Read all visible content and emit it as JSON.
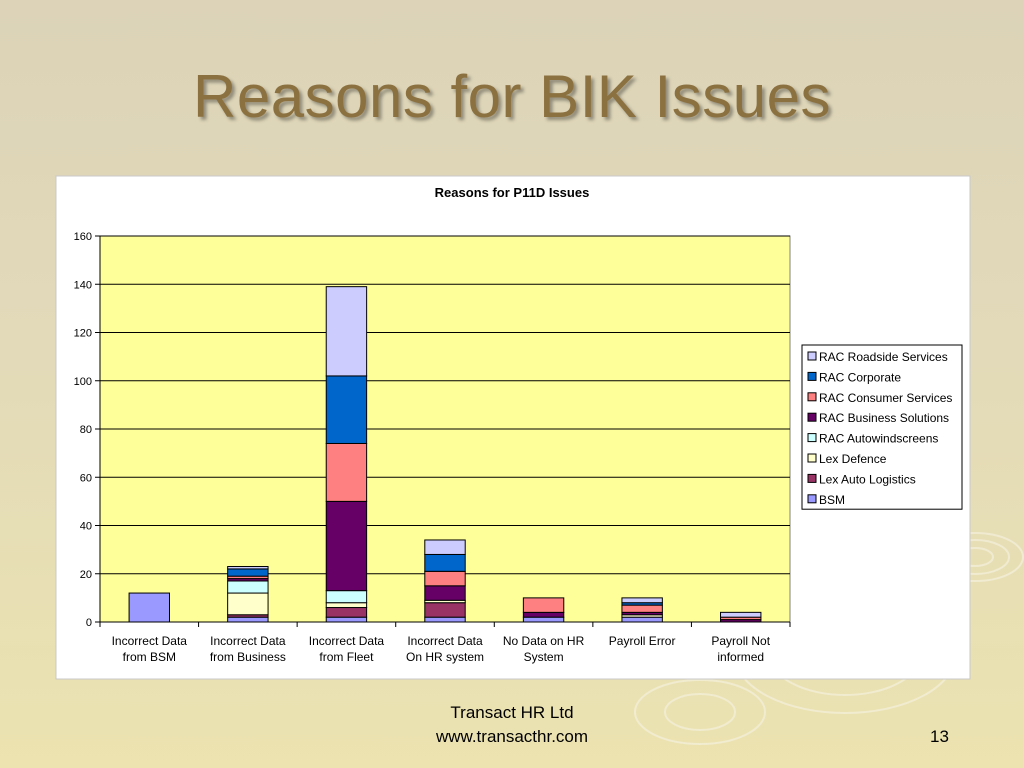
{
  "slide": {
    "title": "Reasons for BIK Issues",
    "footer_company": "Transact HR Ltd",
    "footer_url": "www.transacthr.com",
    "page_number": "13"
  },
  "chart_data": {
    "type": "bar",
    "stacked": true,
    "title": "Reasons for P11D Issues",
    "xlabel": "",
    "ylabel": "",
    "ylim": [
      0,
      160
    ],
    "yticks": [
      0,
      20,
      40,
      60,
      80,
      100,
      120,
      140,
      160
    ],
    "grid": true,
    "legend_position": "right",
    "plot_background": "#ffff99",
    "categories": [
      [
        "Incorrect Data",
        "from BSM"
      ],
      [
        "Incorrect Data",
        "from Business"
      ],
      [
        "Incorrect Data",
        "from Fleet"
      ],
      [
        "Incorrect Data",
        "On HR system"
      ],
      [
        "No Data on HR",
        "System"
      ],
      [
        "Payroll Error"
      ],
      [
        "Payroll Not",
        "informed"
      ]
    ],
    "series": [
      {
        "name": "BSM",
        "color": "#9999ff",
        "values": [
          12,
          2,
          2,
          2,
          2,
          2,
          0
        ]
      },
      {
        "name": "Lex Auto Logistics",
        "color": "#993366",
        "values": [
          0,
          1,
          4,
          6,
          0,
          0,
          0
        ]
      },
      {
        "name": "Lex Defence",
        "color": "#ffffcc",
        "values": [
          0,
          9,
          2,
          1,
          0,
          1,
          0
        ]
      },
      {
        "name": "RAC Autowindscreens",
        "color": "#ccffff",
        "values": [
          0,
          5,
          5,
          0,
          0,
          0,
          0
        ]
      },
      {
        "name": "RAC Business Solutions",
        "color": "#660066",
        "values": [
          0,
          1,
          37,
          6,
          2,
          1,
          1
        ]
      },
      {
        "name": "RAC Consumer Services",
        "color": "#ff8080",
        "values": [
          0,
          1,
          24,
          6,
          6,
          3,
          1
        ]
      },
      {
        "name": "RAC Corporate",
        "color": "#0066cc",
        "values": [
          0,
          3,
          28,
          7,
          0,
          1,
          0
        ]
      },
      {
        "name": "RAC Roadside Services",
        "color": "#ccccff",
        "values": [
          0,
          1,
          37,
          6,
          0,
          2,
          2
        ]
      }
    ]
  }
}
